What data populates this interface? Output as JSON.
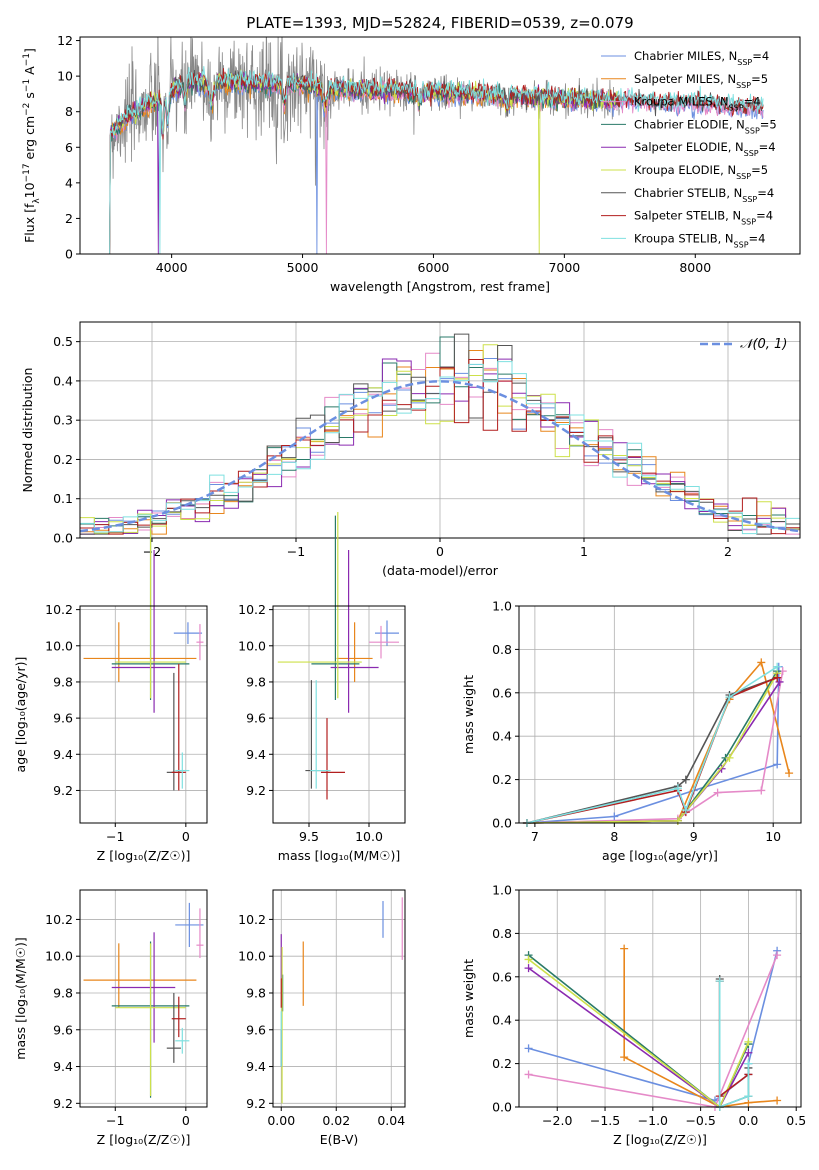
{
  "colors": {
    "Chabrier MILES": "#6b8fe0",
    "Salpeter MILES": "#e8861c",
    "Kroupa MILES": "#e58ac8",
    "Chabrier ELODIE": "#2a7a68",
    "Salpeter ELODIE": "#8a2ab0",
    "Kroupa ELODIE": "#cde04a",
    "Chabrier STELIB": "#555555",
    "Salpeter STELIB": "#b21f1f",
    "Kroupa STELIB": "#7fe0e0",
    "data": "#888888",
    "normal": "#6b8fe0"
  },
  "chart_data": [
    {
      "id": "spectrum",
      "type": "line",
      "title": "PLATE=1393, MJD=52824, FIBERID=0539, z=0.079",
      "xlabel": "wavelength [Angstrom, rest frame]",
      "ylabel": "Flux [f",
      "ylabel_parts": [
        "Flux [f",
        "λ",
        "10",
        "−17",
        " erg cm",
        "−2",
        " s",
        "−1",
        " A",
        "−1",
        "]"
      ],
      "xlim": [
        3300,
        8800
      ],
      "ylim": [
        0,
        12.2
      ],
      "xticks": [
        4000,
        5000,
        6000,
        7000,
        8000
      ],
      "yticks": [
        0,
        2,
        4,
        6,
        8,
        10,
        12
      ],
      "legend_loc": "upper right",
      "legend": [
        {
          "model": "Chabrier MILES",
          "nssp": "4"
        },
        {
          "model": "Salpeter MILES",
          "nssp": "5"
        },
        {
          "model": "Kroupa MILES",
          "nssp": "4"
        },
        {
          "model": "Chabrier ELODIE",
          "nssp": "5"
        },
        {
          "model": "Salpeter ELODIE",
          "nssp": "4"
        },
        {
          "model": "Kroupa ELODIE",
          "nssp": "5"
        },
        {
          "model": "Chabrier STELIB",
          "nssp": "4"
        },
        {
          "model": "Salpeter STELIB",
          "nssp": "4"
        },
        {
          "model": "Kroupa STELIB",
          "nssp": "4"
        }
      ],
      "continuum": {
        "x": [
          3520,
          3600,
          3700,
          3800,
          3900,
          4000,
          4100,
          4200,
          4400,
          4600,
          4800,
          5000,
          5200,
          5500,
          6000,
          6500,
          7000,
          7400,
          7500,
          7800,
          8000,
          8300,
          8500
        ],
        "y": [
          6.6,
          7.3,
          7.9,
          8.3,
          8.6,
          9.1,
          9.7,
          9.6,
          9.7,
          9.6,
          9.6,
          9.5,
          9.3,
          9.2,
          9.1,
          8.9,
          8.7,
          8.6,
          8.6,
          8.5,
          8.5,
          8.3,
          8.2
        ]
      },
      "data_range": [
        3520,
        7420
      ],
      "model_range": [
        3520,
        8520
      ]
    },
    {
      "id": "residual-histogram",
      "type": "line",
      "xlabel": "(data-model)/error",
      "ylabel": "Normed distribution",
      "xlim": [
        -2.5,
        2.5
      ],
      "ylim": [
        0,
        0.55
      ],
      "xticks": [
        -2,
        -1,
        0,
        1,
        2
      ],
      "yticks": [
        0,
        0.1,
        0.2,
        0.3,
        0.4,
        0.5
      ],
      "grid": true,
      "legend_loc": "upper right",
      "legend": [
        "𝒩(0, 1)"
      ],
      "normal": {
        "mean": 0,
        "sigma": 1
      }
    },
    {
      "id": "age-vs-Z",
      "type": "scatter",
      "xlabel": "Z [log₁₀(Z/Z☉)]",
      "ylabel": "age  [log₁₀(age/yr)]",
      "xlim": [
        -1.5,
        0.3
      ],
      "ylim": [
        9.02,
        10.22
      ],
      "xticks": [
        -1,
        0
      ],
      "yticks": [
        9.2,
        9.4,
        9.6,
        9.8,
        10.0,
        10.2
      ],
      "grid": true,
      "points": [
        {
          "model": "Chabrier MILES",
          "x": 0.03,
          "xerr": [
            0.2,
            0.2
          ],
          "y": 10.07,
          "yerr": [
            0.06,
            0.06
          ]
        },
        {
          "model": "Salpeter MILES",
          "x": -0.95,
          "xerr": [
            0.5,
            1.1
          ],
          "y": 9.93,
          "yerr": [
            0.13,
            0.2
          ]
        },
        {
          "model": "Kroupa MILES",
          "x": 0.2,
          "xerr": [
            0.05,
            0.05
          ],
          "y": 10.02,
          "yerr": [
            0.1,
            0.1
          ]
        },
        {
          "model": "Chabrier ELODIE",
          "x": -0.5,
          "xerr": [
            0.55,
            0.55
          ],
          "y": 9.9,
          "yerr": [
            0.2,
            0.79
          ]
        },
        {
          "model": "Salpeter ELODIE",
          "x": -0.45,
          "xerr": [
            0.6,
            0.3
          ],
          "y": 9.88,
          "yerr": [
            0.25,
            0.65
          ]
        },
        {
          "model": "Kroupa ELODIE",
          "x": -0.5,
          "xerr": [
            0.5,
            0.5
          ],
          "y": 9.91,
          "yerr": [
            0.2,
            0.81
          ]
        },
        {
          "model": "Chabrier STELIB",
          "x": -0.17,
          "xerr": [
            0.1,
            0.1
          ],
          "y": 9.3,
          "yerr": [
            0.1,
            0.55
          ]
        },
        {
          "model": "Salpeter STELIB",
          "x": -0.1,
          "xerr": [
            0.1,
            0.1
          ],
          "y": 9.3,
          "yerr": [
            0.1,
            0.6
          ]
        },
        {
          "model": "Kroupa STELIB",
          "x": -0.05,
          "xerr": [
            0.1,
            0.1
          ],
          "y": 9.31,
          "yerr": [
            0.1,
            0.1
          ]
        }
      ]
    },
    {
      "id": "age-vs-mass",
      "type": "scatter",
      "xlabel": "mass [log₁₀(M/M☉)]",
      "xlim": [
        9.2,
        10.3
      ],
      "ylim": [
        9.02,
        10.22
      ],
      "xticks": [
        9.5,
        10.0
      ],
      "yticks": [
        9.2,
        9.4,
        9.6,
        9.8,
        10.0,
        10.2
      ],
      "grid": true,
      "points": [
        {
          "model": "Chabrier MILES",
          "x": 10.15,
          "xerr": [
            0.1,
            0.1
          ],
          "y": 10.07,
          "yerr": [
            0.07,
            0.07
          ]
        },
        {
          "model": "Salpeter MILES",
          "x": 9.88,
          "xerr": [
            0.15,
            0.15
          ],
          "y": 9.93,
          "yerr": [
            0.13,
            0.2
          ]
        },
        {
          "model": "Kroupa MILES",
          "x": 10.1,
          "xerr": [
            0.1,
            0.15
          ],
          "y": 10.02,
          "yerr": [
            0.09,
            0.09
          ]
        },
        {
          "model": "Chabrier ELODIE",
          "x": 9.72,
          "xerr": [
            0.2,
            0.2
          ],
          "y": 9.9,
          "yerr": [
            0.2,
            0.82
          ]
        },
        {
          "model": "Salpeter ELODIE",
          "x": 9.83,
          "xerr": [
            0.15,
            0.25
          ],
          "y": 9.88,
          "yerr": [
            0.25,
            0.65
          ]
        },
        {
          "model": "Kroupa ELODIE",
          "x": 9.74,
          "xerr": [
            0.5,
            0.2
          ],
          "y": 9.91,
          "yerr": [
            0.2,
            0.83
          ]
        },
        {
          "model": "Chabrier STELIB",
          "x": 9.52,
          "xerr": [
            0.05,
            0.15
          ],
          "y": 9.31,
          "yerr": [
            0.1,
            0.5
          ]
        },
        {
          "model": "Salpeter STELIB",
          "x": 9.65,
          "xerr": [
            0.05,
            0.15
          ],
          "y": 9.3,
          "yerr": [
            0.15,
            0.3
          ]
        },
        {
          "model": "Kroupa STELIB",
          "x": 9.56,
          "xerr": [
            0.05,
            0.12
          ],
          "y": 9.31,
          "yerr": [
            0.1,
            0.5
          ]
        }
      ]
    },
    {
      "id": "mass-weight-vs-age",
      "type": "line",
      "xlabel": "age  [log₁₀(age/yr)]",
      "ylabel": "mass weight",
      "xlim": [
        6.8,
        10.35
      ],
      "ylim": [
        0,
        1
      ],
      "xticks": [
        7,
        8,
        9,
        10
      ],
      "yticks": [
        0,
        0.2,
        0.4,
        0.6,
        0.8,
        1.0
      ],
      "grid": true,
      "series": [
        {
          "model": "Chabrier MILES",
          "x": [
            6.9,
            8.0,
            9.0,
            10.05,
            10.07
          ],
          "y": [
            0.0,
            0.03,
            0.15,
            0.27,
            0.72
          ]
        },
        {
          "model": "Salpeter MILES",
          "x": [
            6.9,
            8.8,
            9.45,
            9.85,
            10.2
          ],
          "y": [
            0.0,
            0.01,
            0.57,
            0.74,
            0.23
          ]
        },
        {
          "model": "Kroupa MILES",
          "x": [
            6.9,
            8.8,
            9.3,
            9.85,
            10.12
          ],
          "y": [
            0.0,
            0.02,
            0.14,
            0.15,
            0.7
          ]
        },
        {
          "model": "Chabrier ELODIE",
          "x": [
            6.9,
            8.8,
            9.4,
            10.05
          ],
          "y": [
            0.0,
            0.01,
            0.3,
            0.7
          ]
        },
        {
          "model": "Salpeter ELODIE",
          "x": [
            6.9,
            8.8,
            9.35,
            10.08
          ],
          "y": [
            0.0,
            0.01,
            0.25,
            0.65
          ]
        },
        {
          "model": "Kroupa ELODIE",
          "x": [
            6.9,
            8.8,
            9.45,
            10.05
          ],
          "y": [
            0.0,
            0.01,
            0.3,
            0.69
          ]
        },
        {
          "model": "Chabrier STELIB",
          "x": [
            6.9,
            8.8,
            8.9,
            9.45,
            10.05
          ],
          "y": [
            0.0,
            0.17,
            0.2,
            0.59,
            0.67
          ]
        },
        {
          "model": "Salpeter STELIB",
          "x": [
            6.9,
            8.8,
            8.9,
            9.45,
            10.05
          ],
          "y": [
            0.0,
            0.15,
            0.05,
            0.58,
            0.67
          ]
        },
        {
          "model": "Kroupa STELIB",
          "x": [
            6.9,
            8.8,
            8.9,
            9.45,
            10.05
          ],
          "y": [
            0.0,
            0.16,
            0.06,
            0.58,
            0.72
          ]
        }
      ]
    },
    {
      "id": "mass-vs-Z",
      "type": "scatter",
      "xlabel": "Z [log₁₀(Z/Z☉)]",
      "ylabel": "mass [log₁₀(M/M☉)]",
      "xlim": [
        -1.5,
        0.3
      ],
      "ylim": [
        9.18,
        10.36
      ],
      "xticks": [
        -1,
        0
      ],
      "yticks": [
        9.2,
        9.4,
        9.6,
        9.8,
        10.0,
        10.2
      ],
      "grid": true,
      "points": [
        {
          "model": "Chabrier MILES",
          "x": 0.05,
          "xerr": [
            0.2,
            0.2
          ],
          "y": 10.17,
          "yerr": [
            0.12,
            0.12
          ]
        },
        {
          "model": "Salpeter MILES",
          "x": -0.95,
          "xerr": [
            0.5,
            1.1
          ],
          "y": 9.87,
          "yerr": [
            0.15,
            0.2
          ]
        },
        {
          "model": "Kroupa MILES",
          "x": 0.2,
          "xerr": [
            0.05,
            0.05
          ],
          "y": 10.06,
          "yerr": [
            0.07,
            0.2
          ]
        },
        {
          "model": "Chabrier ELODIE",
          "x": -0.5,
          "xerr": [
            0.55,
            0.55
          ],
          "y": 9.73,
          "yerr": [
            0.5,
            0.35
          ]
        },
        {
          "model": "Salpeter ELODIE",
          "x": -0.45,
          "xerr": [
            0.6,
            0.3
          ],
          "y": 9.83,
          "yerr": [
            0.3,
            0.3
          ]
        },
        {
          "model": "Kroupa ELODIE",
          "x": -0.5,
          "xerr": [
            0.5,
            0.5
          ],
          "y": 9.72,
          "yerr": [
            0.48,
            0.35
          ]
        },
        {
          "model": "Chabrier STELIB",
          "x": -0.17,
          "xerr": [
            0.1,
            0.1
          ],
          "y": 9.5,
          "yerr": [
            0.08,
            0.3
          ]
        },
        {
          "model": "Salpeter STELIB",
          "x": -0.1,
          "xerr": [
            0.1,
            0.1
          ],
          "y": 9.66,
          "yerr": [
            0.1,
            0.12
          ]
        },
        {
          "model": "Kroupa STELIB",
          "x": -0.05,
          "xerr": [
            0.1,
            0.1
          ],
          "y": 9.54,
          "yerr": [
            0.07,
            0.07
          ]
        }
      ]
    },
    {
      "id": "mass-vs-EBV",
      "type": "scatter",
      "xlabel": "E(B-V)",
      "xlim": [
        -0.003,
        0.045
      ],
      "ylim": [
        9.18,
        10.36
      ],
      "xticks": [
        0.0,
        0.02,
        0.04
      ],
      "yticks": [
        9.2,
        9.4,
        9.6,
        9.8,
        10.0,
        10.2
      ],
      "grid": true,
      "points": [
        {
          "model": "Chabrier MILES",
          "x": 0.037,
          "xerr": [
            0,
            0
          ],
          "y": 10.2,
          "yerr": [
            0.1,
            0.1
          ]
        },
        {
          "model": "Salpeter MILES",
          "x": 0.008,
          "xerr": [
            0,
            0
          ],
          "y": 9.9,
          "yerr": [
            0.17,
            0.18
          ]
        },
        {
          "model": "Kroupa MILES",
          "x": 0.044,
          "xerr": [
            0,
            0
          ],
          "y": 10.15,
          "yerr": [
            0.17,
            0.17
          ]
        },
        {
          "model": "Chabrier ELODIE",
          "x": 0.0005,
          "xerr": [
            0,
            0
          ],
          "y": 9.8,
          "yerr": [
            0.1,
            0.1
          ]
        },
        {
          "model": "Salpeter ELODIE",
          "x": 0.0,
          "xerr": [
            0,
            0
          ],
          "y": 10.0,
          "yerr": [
            0.12,
            0.12
          ]
        },
        {
          "model": "Kroupa ELODIE",
          "x": 0.0003,
          "xerr": [
            0,
            0
          ],
          "y": 9.6,
          "yerr": [
            0.4,
            0.45
          ]
        },
        {
          "model": "Chabrier STELIB",
          "x": 0.0,
          "xerr": [
            0,
            0
          ],
          "y": 9.5,
          "yerr": [
            0.1,
            0.1
          ]
        },
        {
          "model": "Salpeter STELIB",
          "x": 0.0,
          "xerr": [
            0,
            0
          ],
          "y": 9.8,
          "yerr": [
            0.08,
            0.08
          ]
        },
        {
          "model": "Kroupa STELIB",
          "x": 0.0,
          "xerr": [
            0,
            0
          ],
          "y": 9.55,
          "yerr": [
            0.15,
            0.15
          ]
        }
      ]
    },
    {
      "id": "mass-weight-vs-Z",
      "type": "line",
      "xlabel": "Z [log₁₀(Z/Z☉)]",
      "ylabel": "mass weight",
      "xlim": [
        -2.4,
        0.55
      ],
      "ylim": [
        0,
        1
      ],
      "xticks": [
        -2.0,
        -1.5,
        -1.0,
        -0.5,
        0.0,
        0.5
      ],
      "yticks": [
        0,
        0.2,
        0.4,
        0.6,
        0.8,
        1.0
      ],
      "grid": true,
      "series": [
        {
          "model": "Chabrier MILES",
          "x": [
            -2.3,
            -0.35,
            0.0,
            0.0,
            0.3
          ],
          "y": [
            0.27,
            0.03,
            0.15,
            0.2,
            0.72
          ]
        },
        {
          "model": "Salpeter MILES",
          "x": [
            -1.3,
            -1.3,
            -0.3,
            0.0,
            0.3
          ],
          "y": [
            0.73,
            0.23,
            0.0,
            0.02,
            0.03
          ]
        },
        {
          "model": "Kroupa MILES",
          "x": [
            -2.3,
            -0.35,
            0.3
          ],
          "y": [
            0.15,
            0.0,
            0.7
          ]
        },
        {
          "model": "Chabrier ELODIE",
          "x": [
            -2.3,
            -0.3,
            0.0
          ],
          "y": [
            0.7,
            0.0,
            0.29
          ]
        },
        {
          "model": "Salpeter ELODIE",
          "x": [
            -2.3,
            -0.3,
            0.0
          ],
          "y": [
            0.64,
            0.0,
            0.25
          ]
        },
        {
          "model": "Kroupa ELODIE",
          "x": [
            -2.3,
            -0.3,
            0.0
          ],
          "y": [
            0.68,
            0.0,
            0.3
          ]
        },
        {
          "model": "Chabrier STELIB",
          "x": [
            -0.3,
            -0.3,
            0.0,
            0.0
          ],
          "y": [
            0.59,
            0.0,
            0.05,
            0.18
          ]
        },
        {
          "model": "Salpeter STELIB",
          "x": [
            -0.3,
            -0.3,
            0.0
          ],
          "y": [
            0.58,
            0.05,
            0.15
          ]
        },
        {
          "model": "Kroupa STELIB",
          "x": [
            -0.3,
            -0.3,
            0.0,
            0.0
          ],
          "y": [
            0.58,
            0.0,
            0.05,
            0.2
          ]
        }
      ]
    }
  ]
}
